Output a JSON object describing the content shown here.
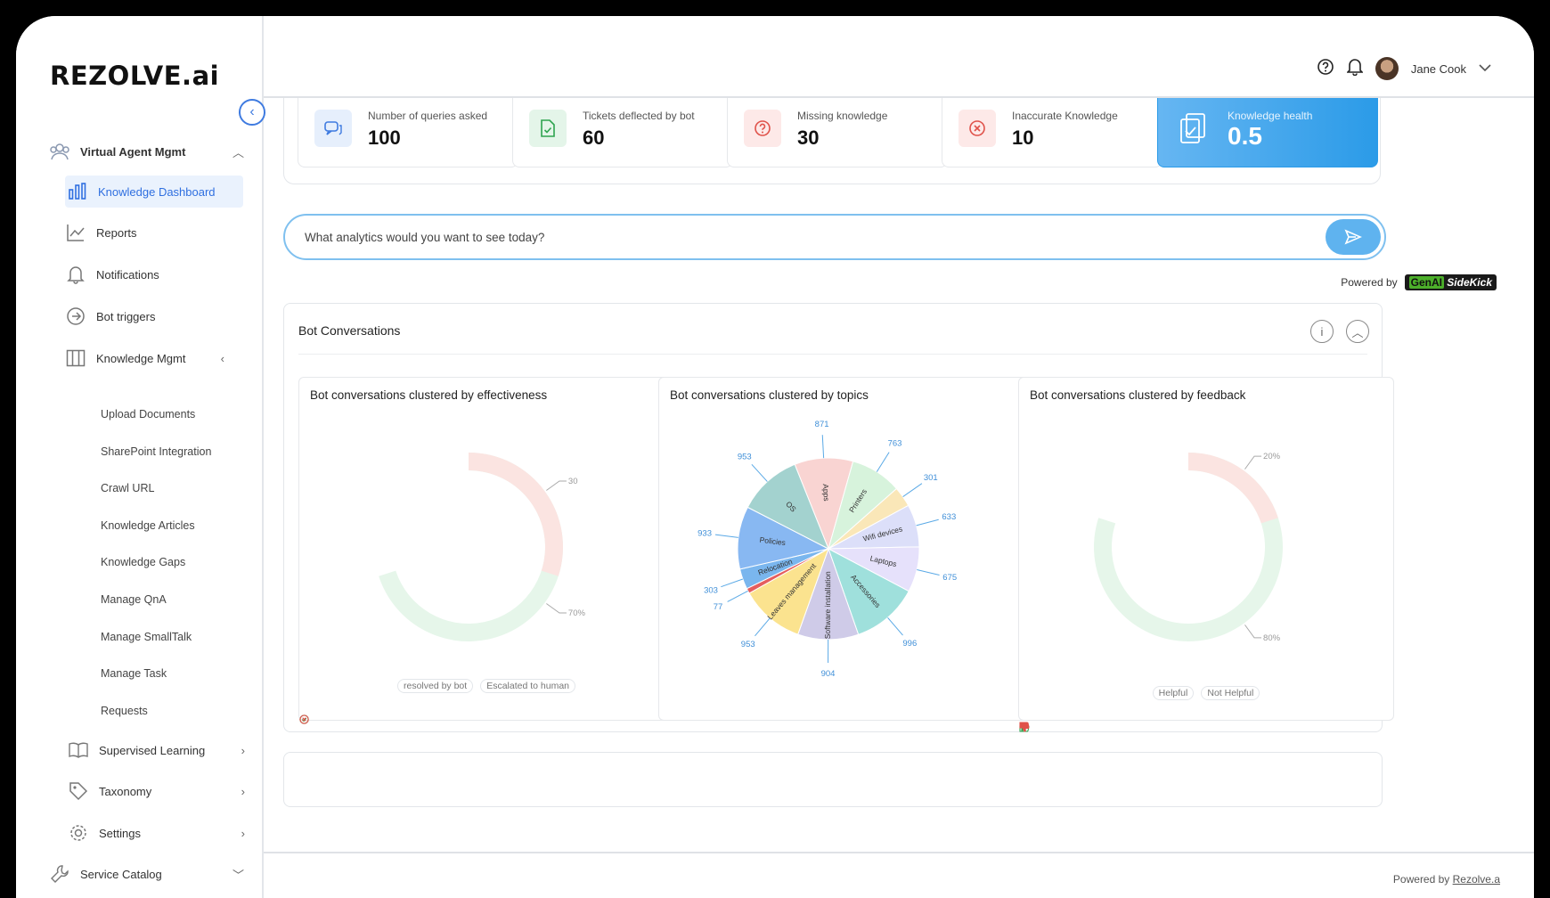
{
  "brand": {
    "logo_text": "REZOLVE.ai"
  },
  "sidebar": {
    "sections": [
      {
        "label": "Virtual Agent Mgmt",
        "icon": "users-group-icon",
        "chevron": "up"
      }
    ],
    "items": [
      {
        "label": "Knowledge Dashboard",
        "icon": "bar-chart-icon",
        "active": true
      },
      {
        "label": "Reports",
        "icon": "report-chart-icon"
      },
      {
        "label": "Notifications",
        "icon": "bell-icon"
      },
      {
        "label": "Bot triggers",
        "icon": "arrow-circle-icon"
      },
      {
        "label": "Knowledge Mgmt",
        "icon": "book-columns-icon",
        "chevron": "left"
      }
    ],
    "sub_items": [
      "Upload Documents",
      "SharePoint Integration",
      "Crawl URL",
      "Knowledge Articles",
      "Knowledge Gaps",
      "Manage QnA",
      "Manage SmallTalk",
      "Manage Task",
      "Requests"
    ],
    "bottom_items": [
      {
        "label": "Supervised Learning",
        "icon": "open-book-icon",
        "chevron": "right"
      },
      {
        "label": "Taxonomy",
        "icon": "tag-icon",
        "chevron": "right"
      },
      {
        "label": "Settings",
        "icon": "gear-icon",
        "chevron": "right"
      },
      {
        "label": "Service Catalog",
        "icon": "wrench-icon",
        "chevron": "down"
      }
    ]
  },
  "topbar": {
    "user_name": "Jane Cook"
  },
  "stats": [
    {
      "label": "Number of queries asked",
      "value": "100",
      "icon": "chat-bubbles-icon",
      "color": "#3f7be0",
      "bg": "#e6effc"
    },
    {
      "label": "Tickets deflected by bot",
      "value": "60",
      "icon": "document-check-icon",
      "color": "#2ea44f",
      "bg": "#e4f5e9"
    },
    {
      "label": "Missing knowledge",
      "value": "30",
      "icon": "question-circle-icon",
      "color": "#e0524a",
      "bg": "#fde9e8"
    },
    {
      "label": "Inaccurate Knowledge",
      "value": "10",
      "icon": "x-circle-icon",
      "color": "#e0524a",
      "bg": "#fde9e8"
    },
    {
      "label": "Knowledge health",
      "value": "0.5",
      "icon": "clipboard-check-icon",
      "color": "#ffffff",
      "bg": "transparent"
    }
  ],
  "search": {
    "placeholder": "What analytics would you want to see today?"
  },
  "powered_by": {
    "label": "Powered by",
    "badge_g": "GenAI",
    "badge_rest": " SideKick"
  },
  "bot_conversations": {
    "title": "Bot Conversations",
    "charts": [
      {
        "title": "Bot conversations clustered by effectiveness",
        "legend": [
          {
            "label": "resolved by bot",
            "icon": "check-circle-icon",
            "color": "#2ea44f"
          },
          {
            "label": "Escalated to human",
            "icon": "x-circle-icon",
            "color": "#e0524a"
          }
        ]
      },
      {
        "title": "Bot conversations clustered by topics"
      },
      {
        "title": "Bot conversations clustered by feedback",
        "legend": [
          {
            "label": "Helpful",
            "icon": "thumbs-up-icon",
            "color": "#2ea44f"
          },
          {
            "label": "Not Helpful",
            "icon": "thumbs-down-icon",
            "color": "#e0524a"
          }
        ]
      }
    ]
  },
  "chart_data": [
    {
      "type": "pie",
      "title": "Bot conversations clustered by effectiveness",
      "donut": true,
      "slices": [
        {
          "name": "resolved by bot",
          "value": 70,
          "label": "70%",
          "color": "#e6f6ea"
        },
        {
          "name": "Escalated to human",
          "value": 30,
          "label": "30",
          "color": "#fbe4e1"
        }
      ],
      "legend": "bottom"
    },
    {
      "type": "pie",
      "title": "Bot conversations clustered by topics",
      "slices": [
        {
          "name": "Apps",
          "value": 871,
          "color": "#f9d4d2"
        },
        {
          "name": "Printers",
          "value": 763,
          "color": "#d7f3dc"
        },
        {
          "name": "",
          "value": 301,
          "color": "#fae7b8"
        },
        {
          "name": "Wifi devices",
          "value": 633,
          "color": "#dcdff9"
        },
        {
          "name": "Laptops",
          "value": 675,
          "color": "#e6e1fb"
        },
        {
          "name": "Accessories",
          "value": 996,
          "color": "#9fe0dc"
        },
        {
          "name": "Software installation",
          "value": 904,
          "color": "#cfcbe8"
        },
        {
          "name": "Leaves management",
          "value": 953,
          "color": "#fbe38f"
        },
        {
          "name": "",
          "value": 77,
          "color": "#e55e5e"
        },
        {
          "name": "Relocation",
          "value": 303,
          "color": "#7ab6ee"
        },
        {
          "name": "Policies",
          "value": 933,
          "color": "#88b8f2"
        },
        {
          "name": "OS",
          "value": 953,
          "color": "#a3d2cf"
        }
      ]
    },
    {
      "type": "pie",
      "title": "Bot conversations clustered by feedback",
      "donut": true,
      "slices": [
        {
          "name": "Helpful",
          "value": 80,
          "label": "80%",
          "color": "#e6f6ea"
        },
        {
          "name": "Not Helpful",
          "value": 20,
          "label": "20%",
          "color": "#fbe4e1"
        }
      ],
      "legend": "bottom"
    }
  ],
  "footer": {
    "prefix": "Powered by ",
    "link": "Rezolve.a"
  }
}
